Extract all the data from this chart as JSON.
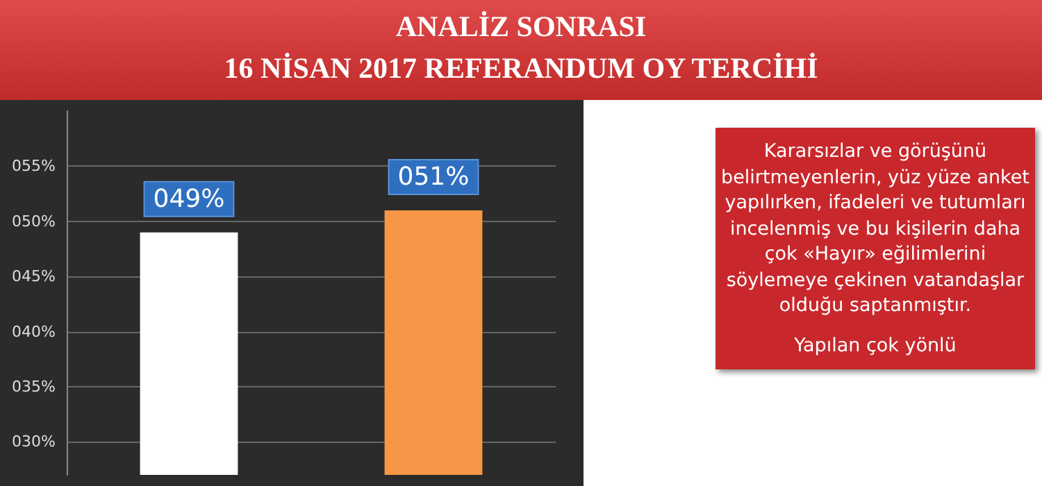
{
  "chart_data": {
    "type": "bar",
    "title": "ANALİZ SONRASI",
    "subtitle": "16 NİSAN 2017 REFERANDUM OY TERCİHİ",
    "categories": [
      null,
      null
    ],
    "values": [
      49,
      51
    ],
    "colors": [
      "#ffffff",
      "#f79646"
    ],
    "value_labels": [
      "049%",
      "051%"
    ],
    "ylim": [
      27,
      60
    ],
    "yticks": [
      {
        "value": 30,
        "label": "030%"
      },
      {
        "value": 35,
        "label": "035%"
      },
      {
        "value": 40,
        "label": "040%"
      },
      {
        "value": 45,
        "label": "045%"
      },
      {
        "value": 50,
        "label": "050%"
      },
      {
        "value": 55,
        "label": "055%"
      }
    ],
    "grid": "y",
    "annotations": [
      "Kararsızlar ve görüşünü belirtmeyenlerin, yüz yüze anket yapılırken, ifadeleri ve tutumları incelenmiş ve bu kişilerin daha çok «Hayır» eğilimlerini söylemeye çekinen vatandaşlar olduğu saptanmıştır.",
      "Yapılan çok yönlü"
    ]
  }
}
